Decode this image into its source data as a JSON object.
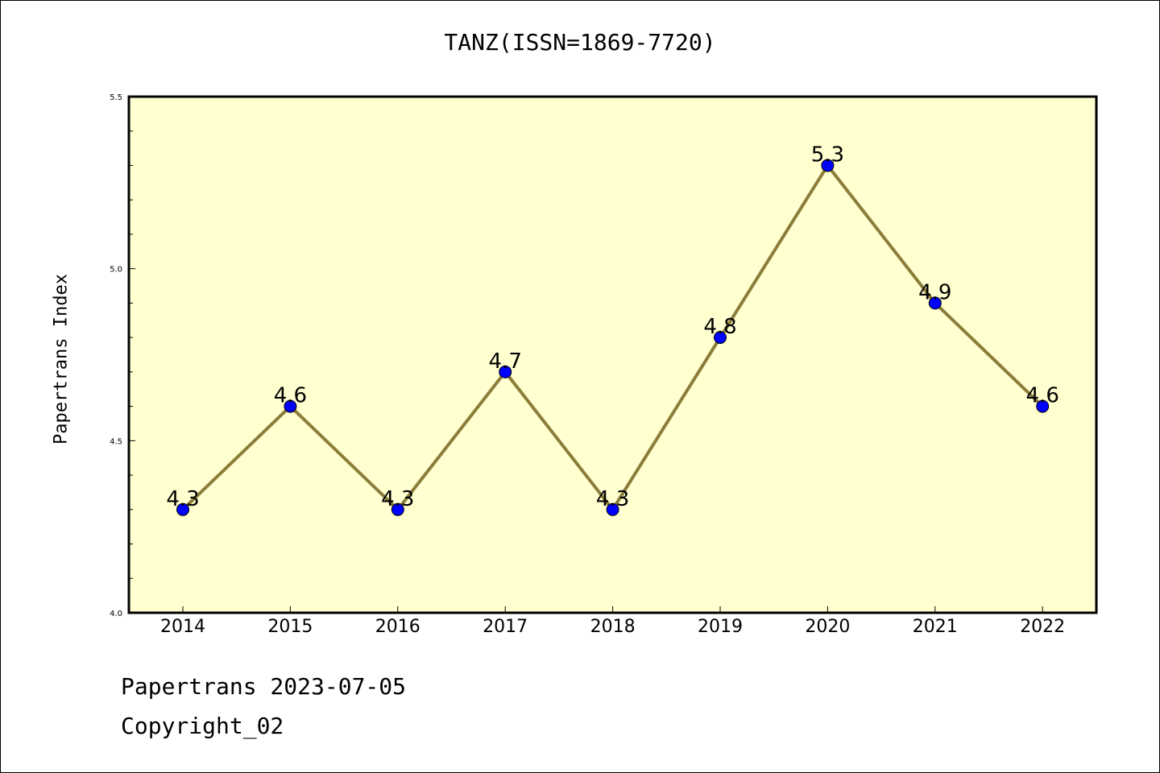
{
  "title": "TANZ(ISSN=1869-7720)",
  "ylabel": "Papertrans Index",
  "footer": {
    "date_text": "Papertrans 2023-07-05",
    "copyright": "Copyright_02"
  },
  "colors": {
    "plot_background": "#ffffd0",
    "line": "#8b7d3a",
    "marker": "#0000ff"
  },
  "chart_data": {
    "type": "line",
    "title": "TANZ(ISSN=1869-7720)",
    "xlabel": "",
    "ylabel": "Papertrans Index",
    "categories": [
      "2014",
      "2015",
      "2016",
      "2017",
      "2018",
      "2019",
      "2020",
      "2021",
      "2022"
    ],
    "values": [
      4.3,
      4.6,
      4.3,
      4.7,
      4.3,
      4.8,
      5.3,
      4.9,
      4.6
    ],
    "data_labels": [
      "4.3",
      "4.6",
      "4.3",
      "4.7",
      "4.3",
      "4.8",
      "5.3",
      "4.9",
      "4.6"
    ],
    "ylim": [
      4.0,
      5.5
    ],
    "yticks": [
      "4.0",
      "4.5",
      "5.0",
      "5.5"
    ],
    "grid": false,
    "legend": "none"
  }
}
